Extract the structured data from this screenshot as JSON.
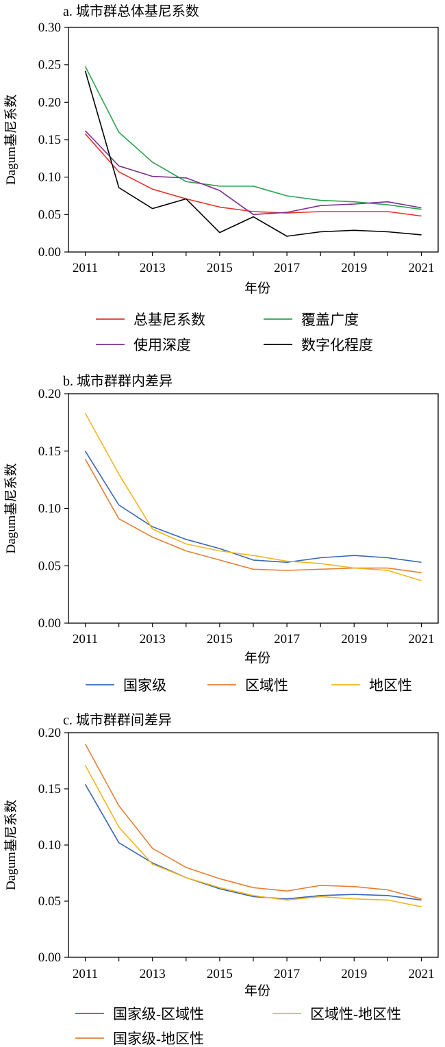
{
  "chart_data": [
    {
      "type": "line",
      "title": "a. 城市群总体基尼系数",
      "xlabel": "年份",
      "ylabel": "Dagum基尼系数",
      "x": [
        2011,
        2012,
        2013,
        2014,
        2015,
        2016,
        2017,
        2018,
        2019,
        2020,
        2021
      ],
      "xticks": [
        "2011",
        "2013",
        "2015",
        "2017",
        "2019",
        "2021"
      ],
      "xlim": [
        2010.5,
        2021.5
      ],
      "ylim": [
        0,
        0.3
      ],
      "yticks": [
        "0.00",
        "0.05",
        "0.10",
        "0.15",
        "0.20",
        "0.25",
        "0.30"
      ],
      "legend_position": "bottom",
      "series": [
        {
          "name": "总基尼系数",
          "color": "#e8302b",
          "values": [
            0.158,
            0.107,
            0.084,
            0.071,
            0.06,
            0.054,
            0.052,
            0.054,
            0.054,
            0.054,
            0.048
          ]
        },
        {
          "name": "覆盖广度",
          "color": "#2ca24c",
          "values": [
            0.248,
            0.16,
            0.12,
            0.094,
            0.088,
            0.088,
            0.075,
            0.069,
            0.067,
            0.063,
            0.057
          ]
        },
        {
          "name": "使用深度",
          "color": "#7a2f8f",
          "values": [
            0.162,
            0.115,
            0.101,
            0.099,
            0.082,
            0.05,
            0.053,
            0.062,
            0.064,
            0.067,
            0.059
          ]
        },
        {
          "name": "数字化程度",
          "color": "#000000",
          "values": [
            0.242,
            0.086,
            0.058,
            0.071,
            0.026,
            0.047,
            0.021,
            0.027,
            0.029,
            0.027,
            0.023
          ]
        }
      ]
    },
    {
      "type": "line",
      "title": "b. 城市群群内差异",
      "xlabel": "年份",
      "ylabel": "Dagum基尼系数",
      "x": [
        2011,
        2012,
        2013,
        2014,
        2015,
        2016,
        2017,
        2018,
        2019,
        2020,
        2021
      ],
      "xticks": [
        "2011",
        "2013",
        "2015",
        "2017",
        "2019",
        "2021"
      ],
      "xlim": [
        2010.5,
        2021.5
      ],
      "ylim": [
        0,
        0.2
      ],
      "yticks": [
        "0.00",
        "0.05",
        "0.10",
        "0.15",
        "0.20"
      ],
      "legend_position": "bottom",
      "series": [
        {
          "name": "国家级",
          "color": "#3a66b4",
          "values": [
            0.15,
            0.103,
            0.084,
            0.073,
            0.065,
            0.055,
            0.053,
            0.057,
            0.059,
            0.057,
            0.053
          ]
        },
        {
          "name": "区域性",
          "color": "#e67e32",
          "values": [
            0.143,
            0.091,
            0.075,
            0.063,
            0.055,
            0.047,
            0.046,
            0.047,
            0.048,
            0.048,
            0.044
          ]
        },
        {
          "name": "地区性",
          "color": "#f2b51d",
          "values": [
            0.183,
            0.13,
            0.082,
            0.069,
            0.063,
            0.059,
            0.054,
            0.052,
            0.048,
            0.046,
            0.037
          ]
        }
      ]
    },
    {
      "type": "line",
      "title": "c. 城市群群间差异",
      "xlabel": "年份",
      "ylabel": "Dagum基尼系数",
      "x": [
        2011,
        2012,
        2013,
        2014,
        2015,
        2016,
        2017,
        2018,
        2019,
        2020,
        2021
      ],
      "xticks": [
        "2011",
        "2013",
        "2015",
        "2017",
        "2019",
        "2021"
      ],
      "xlim": [
        2010.5,
        2021.5
      ],
      "ylim": [
        0,
        0.2
      ],
      "yticks": [
        "0.00",
        "0.05",
        "0.10",
        "0.15",
        "0.20"
      ],
      "legend_position": "bottom",
      "series": [
        {
          "name": "国家级-区域性",
          "color": "#3a66b4",
          "values": [
            0.154,
            0.102,
            0.084,
            0.071,
            0.061,
            0.054,
            0.052,
            0.055,
            0.056,
            0.055,
            0.051
          ]
        },
        {
          "name": "区域性-地区性",
          "color": "#f2b51d",
          "values": [
            0.171,
            0.116,
            0.083,
            0.071,
            0.062,
            0.055,
            0.051,
            0.054,
            0.052,
            0.051,
            0.045
          ]
        },
        {
          "name": "国家级-地区性",
          "color": "#e67e32",
          "values": [
            0.19,
            0.135,
            0.097,
            0.08,
            0.07,
            0.062,
            0.059,
            0.064,
            0.063,
            0.06,
            0.052
          ]
        }
      ]
    }
  ]
}
